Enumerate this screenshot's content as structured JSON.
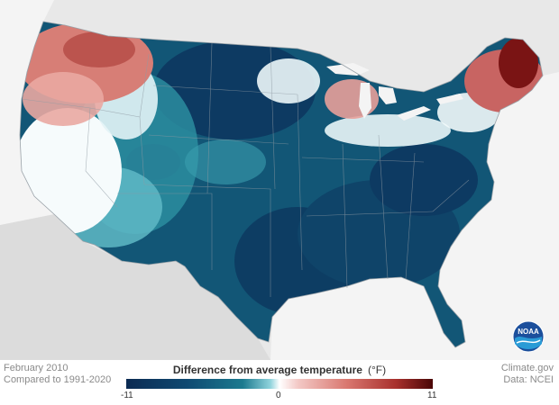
{
  "map": {
    "period": "February 2010",
    "baseline": "Compared to 1991-2020",
    "source_site": "Climate.gov",
    "source_data": "Data: NCEI"
  },
  "legend": {
    "title": "Difference from average temperature",
    "unit": "(°F)",
    "min_label": "-11",
    "mid_label": "0",
    "max_label": "11",
    "color_min": "#0b2a52",
    "color_mid": "#ffffff",
    "color_max": "#4a0606"
  },
  "logo": {
    "text": "NOAA",
    "icon": "noaa-logo-icon"
  }
}
